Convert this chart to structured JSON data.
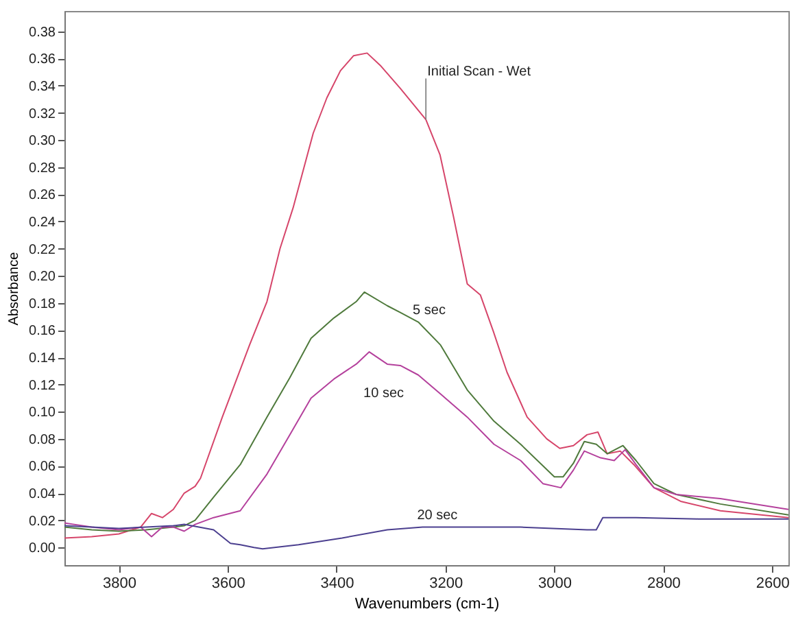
{
  "chart_data": {
    "type": "line",
    "xlabel": "Wavenumbers (cm-1)",
    "ylabel": "Absorbance",
    "legend": false,
    "grid": false,
    "xlim": [
      3900,
      2570
    ],
    "ylim": [
      -0.013,
      0.395
    ],
    "xticks": [
      3800,
      3600,
      3400,
      3200,
      3000,
      2800,
      2600
    ],
    "yticks": [
      {
        "value": 0,
        "label": "0.00"
      },
      {
        "value": 0.02,
        "label": "0.02"
      },
      {
        "value": 0.04,
        "label": "0.04"
      },
      {
        "value": 0.06,
        "label": "0.06"
      },
      {
        "value": 0.08,
        "label": "0.08"
      },
      {
        "value": 0.1,
        "label": "0.10"
      },
      {
        "value": 0.12,
        "label": "0.12"
      },
      {
        "value": 0.14,
        "label": "0.14"
      },
      {
        "value": 0.16,
        "label": "0.16"
      },
      {
        "value": 0.18,
        "label": "0.18"
      },
      {
        "value": 0.2,
        "label": "0.20"
      },
      {
        "value": 0.22,
        "label": "0.22"
      },
      {
        "value": 0.24,
        "label": "0.24"
      },
      {
        "value": 0.26,
        "label": "0.26"
      },
      {
        "value": 0.28,
        "label": "0.28"
      },
      {
        "value": 0.3,
        "label": "0.30"
      },
      {
        "value": 0.32,
        "label": "0.32"
      },
      {
        "value": 0.34,
        "label": "0.34"
      },
      {
        "value": 0.36,
        "label": "0.36"
      },
      {
        "value": 0.38,
        "label": "0.38"
      }
    ],
    "series": [
      {
        "name": "Initial Scan - Wet",
        "color": "#d6456a",
        "x": [
          3900,
          3850,
          3800,
          3760,
          3740,
          3720,
          3700,
          3680,
          3660,
          3650,
          3610,
          3560,
          3528,
          3504,
          3480,
          3443,
          3418,
          3393,
          3369,
          3344,
          3320,
          3283,
          3236,
          3210,
          3185,
          3160,
          3136,
          3112,
          3087,
          3050,
          3014,
          2990,
          2965,
          2940,
          2920,
          2903,
          2879,
          2854,
          2817,
          2768,
          2695,
          2570
        ],
        "values": [
          0.007,
          0.008,
          0.01,
          0.015,
          0.025,
          0.022,
          0.028,
          0.04,
          0.045,
          0.051,
          0.096,
          0.149,
          0.181,
          0.22,
          0.25,
          0.305,
          0.331,
          0.351,
          0.362,
          0.364,
          0.355,
          0.338,
          0.315,
          0.289,
          0.243,
          0.194,
          0.186,
          0.159,
          0.129,
          0.096,
          0.08,
          0.073,
          0.075,
          0.083,
          0.085,
          0.069,
          0.071,
          0.061,
          0.044,
          0.034,
          0.027,
          0.022
        ]
      },
      {
        "name": "5 sec",
        "color": "#4f7a3c",
        "x": [
          3900,
          3850,
          3800,
          3750,
          3700,
          3680,
          3660,
          3626,
          3577,
          3528,
          3486,
          3447,
          3405,
          3364,
          3349,
          3307,
          3283,
          3250,
          3209,
          3160,
          3111,
          3062,
          3000,
          2984,
          2965,
          2945,
          2923,
          2903,
          2874,
          2850,
          2817,
          2776,
          2695,
          2570
        ],
        "values": [
          0.015,
          0.013,
          0.012,
          0.013,
          0.015,
          0.016,
          0.02,
          0.037,
          0.061,
          0.096,
          0.125,
          0.154,
          0.169,
          0.181,
          0.188,
          0.178,
          0.173,
          0.166,
          0.149,
          0.116,
          0.093,
          0.076,
          0.052,
          0.052,
          0.062,
          0.078,
          0.076,
          0.069,
          0.075,
          0.064,
          0.047,
          0.039,
          0.032,
          0.024
        ]
      },
      {
        "name": "10 sec",
        "color": "#b4409c",
        "x": [
          3900,
          3850,
          3800,
          3760,
          3740,
          3720,
          3700,
          3680,
          3660,
          3626,
          3577,
          3528,
          3486,
          3447,
          3405,
          3364,
          3340,
          3307,
          3283,
          3250,
          3209,
          3160,
          3111,
          3062,
          3021,
          2988,
          2965,
          2945,
          2915,
          2890,
          2870,
          2850,
          2817,
          2776,
          2695,
          2570
        ],
        "values": [
          0.018,
          0.015,
          0.013,
          0.015,
          0.008,
          0.015,
          0.015,
          0.012,
          0.017,
          0.022,
          0.027,
          0.054,
          0.083,
          0.11,
          0.124,
          0.135,
          0.144,
          0.135,
          0.134,
          0.127,
          0.113,
          0.096,
          0.076,
          0.064,
          0.047,
          0.044,
          0.057,
          0.071,
          0.066,
          0.064,
          0.072,
          0.061,
          0.044,
          0.039,
          0.036,
          0.028
        ]
      },
      {
        "name": "20 sec",
        "color": "#4b3f8f",
        "x": [
          3900,
          3800,
          3700,
          3680,
          3626,
          3595,
          3577,
          3552,
          3536,
          3470,
          3390,
          3307,
          3242,
          3144,
          3062,
          2940,
          2923,
          2911,
          2850,
          2736,
          2570
        ],
        "values": [
          0.016,
          0.014,
          0.016,
          0.017,
          0.013,
          0.003,
          0.002,
          0.0,
          -0.001,
          0.002,
          0.007,
          0.013,
          0.015,
          0.015,
          0.015,
          0.013,
          0.013,
          0.022,
          0.022,
          0.021,
          0.021
        ]
      }
    ]
  }
}
